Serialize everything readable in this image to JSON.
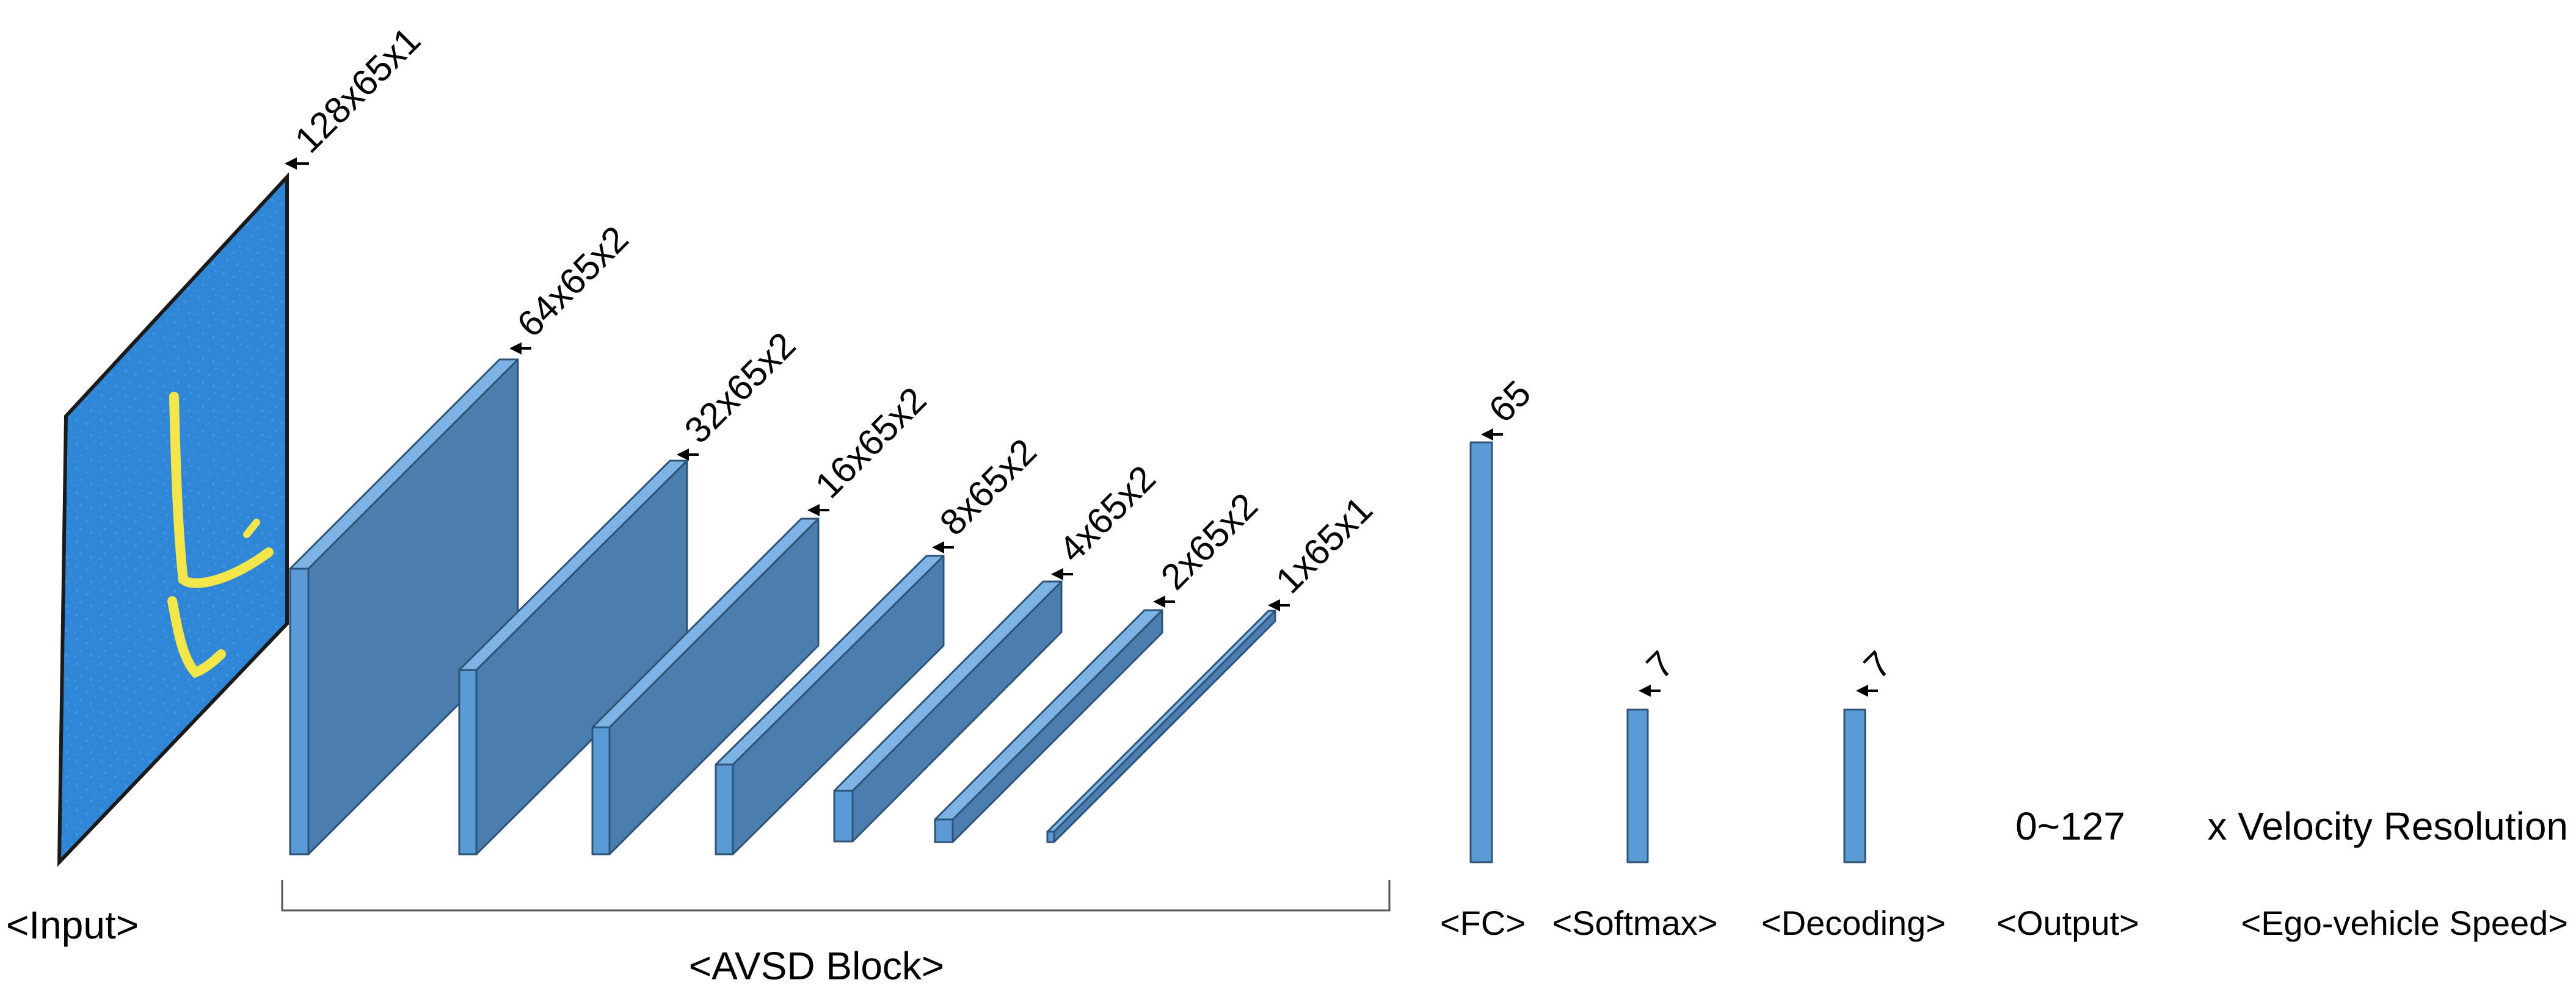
{
  "colors": {
    "block_front": "#5b9bd5",
    "block_side": "#4a7eaf",
    "block_top": "#7eb3e6",
    "block_edge": "#2f5377",
    "input_field": "#2f86d6",
    "input_noise": "#4fa3e8",
    "input_signal": "#f2e64b",
    "text": "#000000"
  },
  "input": {
    "dim_label": "128x65x1",
    "stage_label": "<Input>"
  },
  "avsd_block": {
    "stage_label": "<AVSD Block>",
    "layers": [
      {
        "dim_label": "64x65x2"
      },
      {
        "dim_label": "32x65x2"
      },
      {
        "dim_label": "16x65x2"
      },
      {
        "dim_label": "8x65x2"
      },
      {
        "dim_label": "4x65x2"
      },
      {
        "dim_label": "2x65x2"
      },
      {
        "dim_label": "1x65x1"
      }
    ]
  },
  "fc": {
    "dim_label": "65",
    "stage_label": "<FC>"
  },
  "softmax": {
    "dim_label": "7",
    "stage_label": "<Softmax>"
  },
  "decoding": {
    "dim_label": "7",
    "stage_label": "<Decoding>"
  },
  "output": {
    "value_label": "0~127",
    "stage_label": "<Output>"
  },
  "speed": {
    "value_label": "x Velocity Resolution",
    "stage_label": "<Ego-vehicle Speed>"
  }
}
